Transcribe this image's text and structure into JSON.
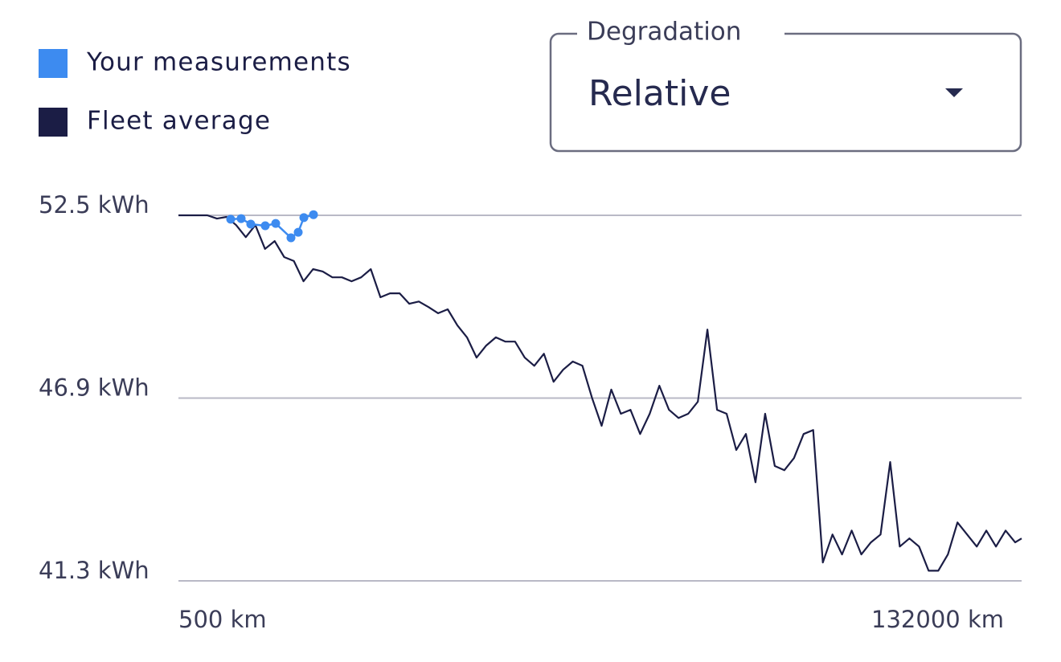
{
  "chart_data": {
    "type": "line",
    "dropdown": {
      "label": "Degradation",
      "value": "Relative"
    },
    "xlim": [
      500,
      132000
    ],
    "xticks": [
      {
        "value": 500,
        "label": "500 km"
      },
      {
        "value": 132000,
        "label": "132000 km"
      }
    ],
    "ylim": [
      41.3,
      52.5
    ],
    "yticks": [
      {
        "value": 41.3,
        "label": "41.3 kWh"
      },
      {
        "value": 46.9,
        "label": "46.9 kWh"
      },
      {
        "value": 52.5,
        "label": "52.5 kWh"
      }
    ],
    "grid": true,
    "series": [
      {
        "name": "Your measurements",
        "color": "#3d8bf0",
        "markers": true,
        "x": [
          8650,
          10280,
          11780,
          14040,
          15670,
          18050,
          19180,
          20060,
          21560
        ],
        "values": [
          52.38,
          52.4,
          52.23,
          52.18,
          52.25,
          51.81,
          51.98,
          52.43,
          52.52
        ]
      },
      {
        "name": "Fleet average",
        "color": "#1b1d45",
        "markers": false,
        "x": [
          500,
          2000,
          3500,
          5000,
          6500,
          8000,
          9500,
          11000,
          12500,
          14000,
          15500,
          17000,
          18500,
          20000,
          21500,
          23000,
          24500,
          26000,
          27500,
          29000,
          30500,
          32000,
          33500,
          35000,
          36500,
          38000,
          39500,
          41000,
          42500,
          44000,
          45500,
          47000,
          48500,
          50000,
          51500,
          53000,
          54500,
          56000,
          57500,
          59000,
          60500,
          62000,
          63500,
          65000,
          66500,
          68000,
          69500,
          71000,
          72500,
          74000,
          75500,
          77000,
          78500,
          80000,
          81500,
          83000,
          84500,
          86000,
          87500,
          89000,
          90500,
          92000,
          93500,
          95000,
          96500,
          98000,
          99500,
          101000,
          102500,
          104000,
          105500,
          107000,
          108500,
          110000,
          111500,
          113000,
          114500,
          116000,
          117500,
          119000,
          120500,
          122000,
          123500,
          125000,
          126500,
          128000,
          129500,
          131000,
          132000
        ],
        "values": [
          52.5,
          52.5,
          52.5,
          52.5,
          52.4,
          52.45,
          52.2,
          51.83,
          52.2,
          51.47,
          51.71,
          51.22,
          51.1,
          50.48,
          50.85,
          50.78,
          50.6,
          50.6,
          50.48,
          50.6,
          50.85,
          49.99,
          50.11,
          50.11,
          49.79,
          49.86,
          49.69,
          49.5,
          49.62,
          49.13,
          48.76,
          48.14,
          48.51,
          48.76,
          48.63,
          48.63,
          48.14,
          47.89,
          48.26,
          47.4,
          47.77,
          48.02,
          47.89,
          46.91,
          46.05,
          47.16,
          46.42,
          46.54,
          45.8,
          46.42,
          47.28,
          46.54,
          46.29,
          46.42,
          46.79,
          49.0,
          46.54,
          46.42,
          45.31,
          45.8,
          44.32,
          46.42,
          44.82,
          44.69,
          45.06,
          45.8,
          45.92,
          41.86,
          42.72,
          42.11,
          42.84,
          42.11,
          42.48,
          42.72,
          44.94,
          42.35,
          42.6,
          42.35,
          41.61,
          41.61,
          42.11,
          43.09,
          42.72,
          42.35,
          42.84,
          42.35,
          42.84,
          42.48,
          42.6
        ]
      }
    ]
  }
}
